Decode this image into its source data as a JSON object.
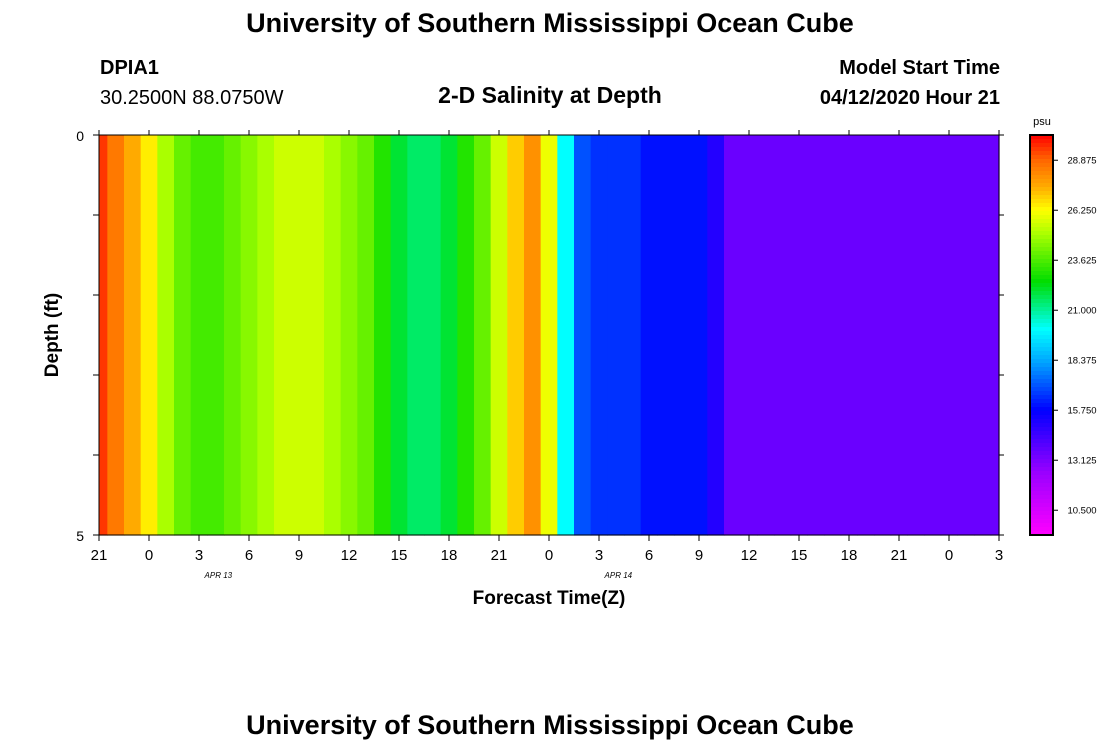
{
  "header": {
    "title": "University of Southern Mississippi Ocean Cube",
    "station_id": "DPIA1",
    "coordinates": "30.2500N 88.0750W",
    "plot_title": "2-D Salinity at Depth",
    "model_start_label": "Model Start Time",
    "model_start_value": "04/12/2020 Hour 21"
  },
  "footer": {
    "title": "University of Southern Mississippi Ocean Cube"
  },
  "chart_data": {
    "type": "heatmap",
    "title": "2-D Salinity at Depth",
    "xlabel": "Forecast Time(Z)",
    "ylabel": "Depth (ft)",
    "ylim": [
      0,
      5
    ],
    "y_tick_labels": [
      "0",
      "5"
    ],
    "x_tick_labels": [
      "21",
      "0",
      "3",
      "6",
      "9",
      "12",
      "15",
      "18",
      "21",
      "0",
      "3",
      "6",
      "9",
      "12",
      "15",
      "18",
      "21",
      "0",
      "3"
    ],
    "date_labels": [
      {
        "text": "APR 13",
        "hour_index": 8
      },
      {
        "text": "APR 14",
        "hour_index": 32
      }
    ],
    "hours": [
      0,
      1,
      2,
      3,
      4,
      5,
      6,
      7,
      8,
      9,
      10,
      11,
      12,
      13,
      14,
      15,
      16,
      17,
      18,
      19,
      20,
      21,
      22,
      23,
      24,
      25,
      26,
      27,
      28,
      29,
      30,
      31,
      32,
      33,
      34,
      35,
      36,
      37,
      38,
      39,
      40,
      41,
      42,
      43,
      44,
      45,
      46,
      47,
      48,
      49,
      50,
      51,
      52,
      53,
      54
    ],
    "depth_layers_ft": [
      0.5,
      1.5,
      2.5,
      3.5,
      4.5
    ],
    "salinity_psu": [
      [
        29.5,
        28.5,
        27.5,
        26.5,
        25.0,
        24.0,
        23.5,
        23.5,
        24.0,
        24.5,
        25.0,
        25.5,
        25.5,
        25.5,
        25.0,
        24.5,
        24.0,
        23.0,
        22.0,
        21.5,
        21.5,
        22.0,
        23.0,
        24.0,
        25.5,
        27.0,
        28.0,
        26.0,
        20.0,
        17.0,
        16.5,
        16.5,
        16.5,
        16.0,
        16.0,
        16.0,
        16.0,
        15.0,
        13.5,
        13.5,
        13.5,
        13.5,
        13.5,
        13.5,
        13.5,
        13.5,
        13.5,
        13.5,
        13.5,
        13.5,
        13.5,
        13.5,
        13.5,
        13.5,
        13.5
      ],
      [
        29.5,
        28.5,
        27.5,
        26.5,
        25.0,
        24.0,
        23.5,
        23.5,
        24.0,
        24.5,
        25.0,
        25.5,
        25.5,
        25.5,
        25.0,
        24.5,
        24.0,
        23.0,
        22.0,
        21.5,
        21.5,
        22.0,
        23.0,
        24.0,
        25.5,
        27.0,
        28.0,
        26.0,
        20.0,
        17.0,
        16.5,
        16.5,
        16.5,
        16.0,
        16.0,
        16.0,
        16.0,
        15.0,
        13.5,
        13.5,
        13.5,
        13.5,
        13.5,
        13.5,
        13.5,
        13.5,
        13.5,
        13.5,
        13.5,
        13.5,
        13.5,
        13.5,
        13.5,
        13.5,
        13.5
      ],
      [
        29.5,
        28.5,
        27.5,
        26.5,
        25.0,
        24.0,
        23.5,
        23.5,
        24.0,
        24.5,
        25.0,
        25.5,
        25.5,
        25.5,
        25.0,
        24.5,
        24.0,
        23.0,
        22.0,
        21.5,
        21.5,
        22.0,
        23.0,
        24.0,
        25.5,
        27.0,
        28.0,
        26.0,
        20.0,
        17.0,
        16.5,
        16.5,
        16.5,
        16.0,
        16.0,
        16.0,
        16.0,
        15.0,
        13.5,
        13.5,
        13.5,
        13.5,
        13.5,
        13.5,
        13.5,
        13.5,
        13.5,
        13.5,
        13.5,
        13.5,
        13.5,
        13.5,
        13.5,
        13.5,
        13.5
      ],
      [
        29.5,
        28.5,
        27.5,
        26.5,
        25.0,
        24.0,
        23.5,
        23.5,
        24.0,
        24.5,
        25.0,
        25.5,
        25.5,
        25.5,
        25.0,
        24.5,
        24.0,
        23.0,
        22.0,
        21.5,
        21.5,
        22.0,
        23.0,
        24.0,
        25.5,
        27.0,
        28.0,
        26.0,
        20.0,
        17.0,
        16.5,
        16.5,
        16.5,
        16.0,
        16.0,
        16.0,
        16.0,
        15.0,
        13.5,
        13.5,
        13.5,
        13.5,
        13.5,
        13.5,
        13.5,
        13.5,
        13.5,
        13.5,
        13.5,
        13.5,
        13.5,
        13.5,
        13.5,
        13.5,
        13.5
      ],
      [
        29.5,
        28.5,
        27.5,
        26.5,
        25.0,
        24.0,
        23.5,
        23.5,
        24.0,
        24.5,
        25.0,
        25.5,
        25.5,
        25.5,
        25.0,
        24.5,
        24.0,
        23.0,
        22.0,
        21.5,
        21.5,
        22.0,
        23.0,
        24.0,
        25.5,
        27.0,
        28.0,
        26.0,
        20.0,
        17.0,
        16.5,
        16.5,
        16.5,
        16.0,
        16.0,
        16.0,
        16.0,
        15.0,
        13.5,
        13.5,
        13.5,
        13.5,
        13.5,
        13.5,
        13.5,
        13.5,
        13.5,
        13.5,
        13.5,
        13.5,
        13.5,
        13.5,
        13.5,
        13.5,
        13.5
      ]
    ],
    "colorbar": {
      "unit": "psu",
      "min": 9.2,
      "max": 30.2,
      "tick_labels": [
        "28.875",
        "26.250",
        "23.625",
        "21.000",
        "18.375",
        "15.750",
        "13.125",
        "10.500"
      ],
      "tick_values": [
        28.875,
        26.25,
        23.625,
        21.0,
        18.375,
        15.75,
        13.125,
        10.5
      ],
      "stops": [
        {
          "value": 9.2,
          "color": "#ff00ff"
        },
        {
          "value": 12.5,
          "color": "#9900ff"
        },
        {
          "value": 15.75,
          "color": "#0000ff"
        },
        {
          "value": 18.375,
          "color": "#00aaff"
        },
        {
          "value": 20.0,
          "color": "#00ffff"
        },
        {
          "value": 22.5,
          "color": "#00dd00"
        },
        {
          "value": 25.0,
          "color": "#aaff00"
        },
        {
          "value": 26.25,
          "color": "#ffff00"
        },
        {
          "value": 27.5,
          "color": "#ffaa00"
        },
        {
          "value": 28.875,
          "color": "#ff6600"
        },
        {
          "value": 30.2,
          "color": "#ff0000"
        }
      ]
    }
  }
}
